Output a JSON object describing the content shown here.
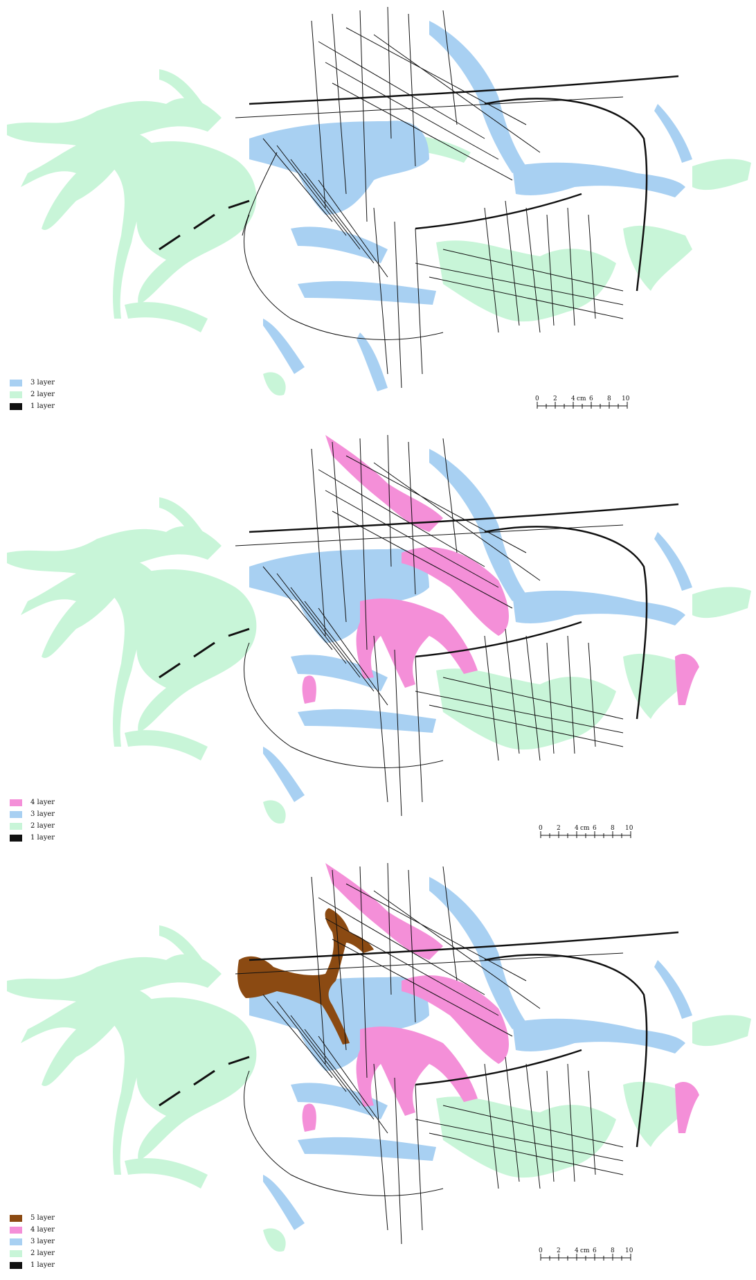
{
  "colors": {
    "layer1": "#111111",
    "layer2": "#c8f5d8",
    "layer3": "#a8d0f2",
    "layer4": "#f48fd8",
    "layer5": "#8b4a12",
    "background": "#ffffff"
  },
  "panels": [
    {
      "legend": [
        {
          "label": "3 layer",
          "color": "#a8d0f2"
        },
        {
          "label": "2 layer",
          "color": "#c8f5d8"
        },
        {
          "label": "1 layer",
          "color": "#111111"
        }
      ],
      "scale_bar": {
        "ticks": [
          "0",
          "2",
          "4",
          "6",
          "8",
          "10"
        ],
        "unit": "cm"
      }
    },
    {
      "legend": [
        {
          "label": "4 layer",
          "color": "#f48fd8"
        },
        {
          "label": "3 layer",
          "color": "#a8d0f2"
        },
        {
          "label": "2 layer",
          "color": "#c8f5d8"
        },
        {
          "label": "1 layer",
          "color": "#111111"
        }
      ],
      "scale_bar": {
        "ticks": [
          "0",
          "2",
          "4",
          "6",
          "8",
          "10"
        ],
        "unit": "cm"
      }
    },
    {
      "legend": [
        {
          "label": "5 layer",
          "color": "#8b4a12"
        },
        {
          "label": "4 layer",
          "color": "#f48fd8"
        },
        {
          "label": "3 layer",
          "color": "#a8d0f2"
        },
        {
          "label": "2 layer",
          "color": "#c8f5d8"
        },
        {
          "label": "1 layer",
          "color": "#111111"
        }
      ],
      "scale_bar": {
        "ticks": [
          "0",
          "2",
          "4",
          "6",
          "8",
          "10"
        ],
        "unit": "cm"
      }
    }
  ]
}
